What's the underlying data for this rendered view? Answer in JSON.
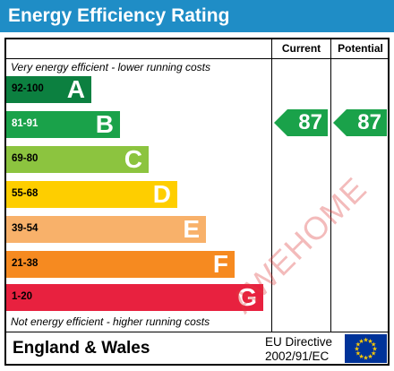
{
  "title": "Energy Efficiency Rating",
  "columns": {
    "current": "Current",
    "potential": "Potential"
  },
  "notes": {
    "top": "Very energy efficient - lower running costs",
    "bottom": "Not energy efficient - higher running costs"
  },
  "bands": [
    {
      "range": "92-100",
      "letter": "A",
      "color": "#0c8040",
      "range_color": "#000000"
    },
    {
      "range": "81-91",
      "letter": "B",
      "color": "#1aa24a",
      "range_color": "#ffffff"
    },
    {
      "range": "69-80",
      "letter": "C",
      "color": "#8cc43f",
      "range_color": "#000000"
    },
    {
      "range": "55-68",
      "letter": "D",
      "color": "#fece00",
      "range_color": "#000000"
    },
    {
      "range": "39-54",
      "letter": "E",
      "color": "#f8b16a",
      "range_color": "#000000"
    },
    {
      "range": "21-38",
      "letter": "F",
      "color": "#f68a20",
      "range_color": "#000000"
    },
    {
      "range": "1-20",
      "letter": "G",
      "color": "#e8213f",
      "range_color": "#000000"
    }
  ],
  "ratings": {
    "current": {
      "value": "87",
      "color": "#1aa24a"
    },
    "potential": {
      "value": "87",
      "color": "#1aa24a"
    }
  },
  "footer": {
    "region": "England & Wales",
    "directive_line1": "EU Directive",
    "directive_line2": "2002/91/EC",
    "flag_icon": "eu-flag-icon",
    "flag_color": "#003399",
    "star_color": "#ffcc00"
  },
  "watermark": "AWEHOME"
}
